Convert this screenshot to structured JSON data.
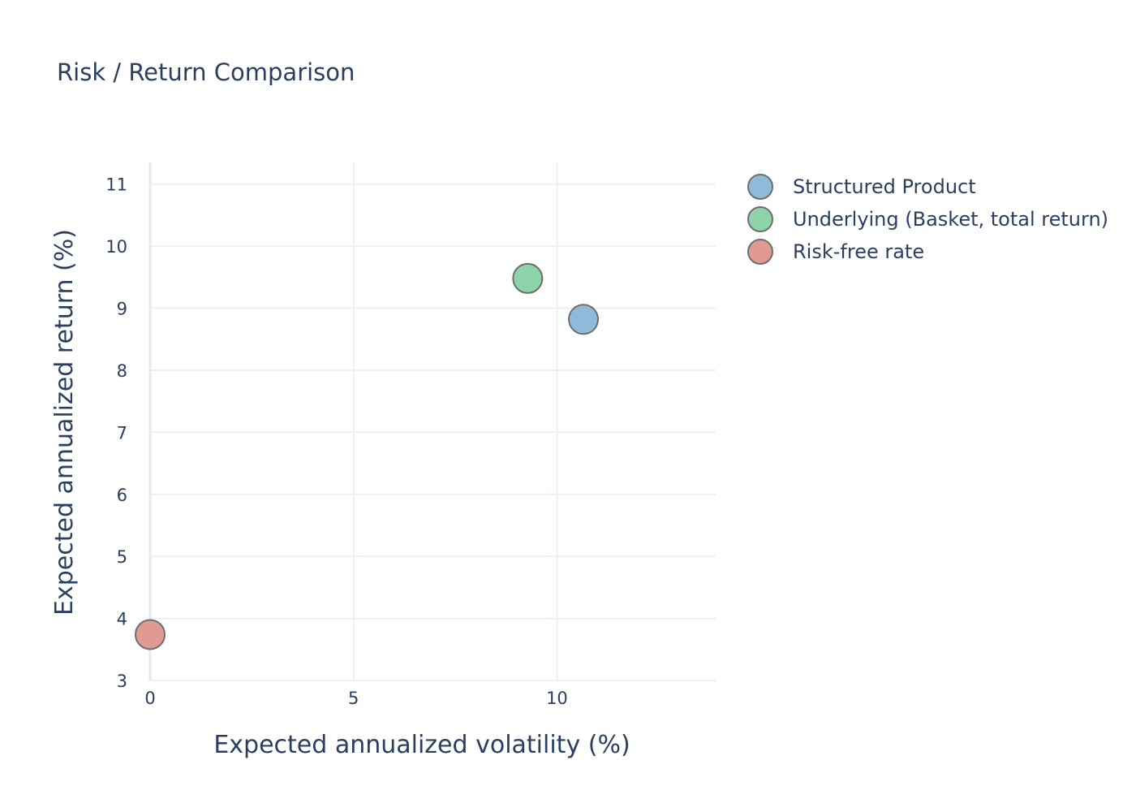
{
  "chart_data": {
    "type": "scatter",
    "title": "Risk / Return Comparison",
    "xlabel": "Expected annualized volatility (%)",
    "ylabel": "Expected annualized return (%)",
    "xlim": [
      0,
      13.9
    ],
    "ylim": [
      3,
      11.35
    ],
    "x_ticks": [
      0,
      5,
      10
    ],
    "y_ticks": [
      3,
      4,
      5,
      6,
      7,
      8,
      9,
      10,
      11
    ],
    "grid": true,
    "legend_position": "top-right",
    "series": [
      {
        "name": "Structured Product",
        "x": [
          10.65
        ],
        "y": [
          8.82
        ],
        "color": "#8fbbdb"
      },
      {
        "name": "Underlying (Basket, total return)",
        "x": [
          9.28
        ],
        "y": [
          9.48
        ],
        "color": "#8ed3aa"
      },
      {
        "name": "Risk-free rate",
        "x": [
          0.0
        ],
        "y": [
          3.74
        ],
        "color": "#e09a92"
      }
    ]
  }
}
